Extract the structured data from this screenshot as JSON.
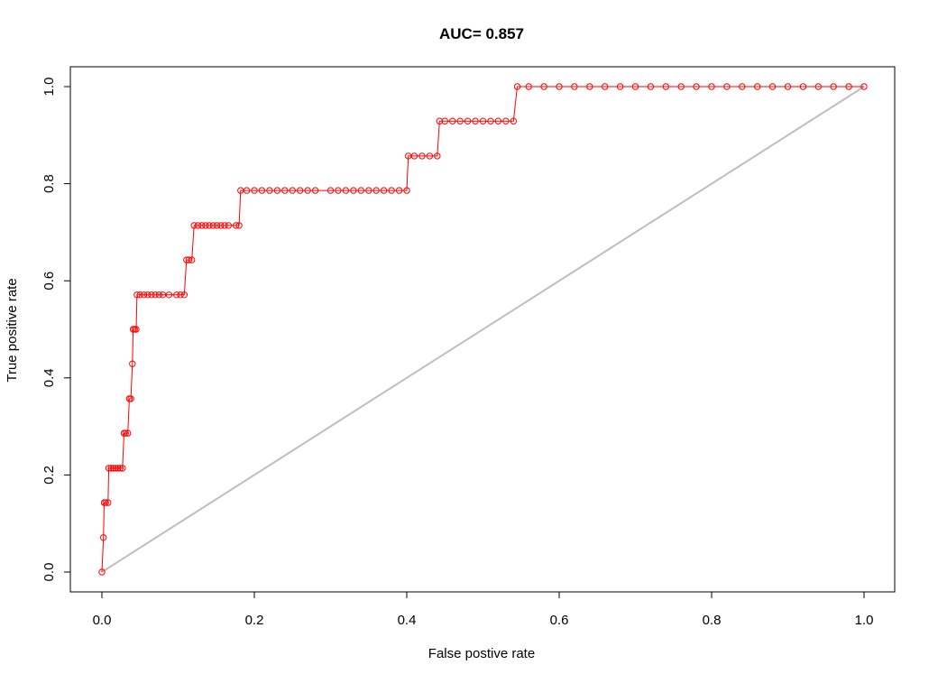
{
  "chart_data": {
    "type": "line",
    "title": "AUC= 0.857",
    "xlabel": "False postive rate",
    "ylabel": "True positive rate",
    "xlim": [
      0,
      1
    ],
    "ylim": [
      0,
      1
    ],
    "x_ticks": [
      "0.0",
      "0.2",
      "0.4",
      "0.6",
      "0.8",
      "1.0"
    ],
    "y_ticks": [
      "0.0",
      "0.2",
      "0.4",
      "0.6",
      "0.8",
      "1.0"
    ],
    "grid": false,
    "legend": "none",
    "series": [
      {
        "color": "#ff0000",
        "marker": "open-circle",
        "points": [
          [
            0.0,
            0.0
          ],
          [
            0.002,
            0.071
          ],
          [
            0.003,
            0.143
          ],
          [
            0.005,
            0.143
          ],
          [
            0.008,
            0.143
          ],
          [
            0.009,
            0.214
          ],
          [
            0.012,
            0.214
          ],
          [
            0.015,
            0.214
          ],
          [
            0.018,
            0.214
          ],
          [
            0.021,
            0.214
          ],
          [
            0.024,
            0.214
          ],
          [
            0.027,
            0.214
          ],
          [
            0.029,
            0.286
          ],
          [
            0.031,
            0.286
          ],
          [
            0.034,
            0.286
          ],
          [
            0.036,
            0.357
          ],
          [
            0.038,
            0.357
          ],
          [
            0.04,
            0.429
          ],
          [
            0.041,
            0.5
          ],
          [
            0.043,
            0.5
          ],
          [
            0.045,
            0.5
          ],
          [
            0.046,
            0.571
          ],
          [
            0.05,
            0.571
          ],
          [
            0.055,
            0.571
          ],
          [
            0.06,
            0.571
          ],
          [
            0.065,
            0.571
          ],
          [
            0.07,
            0.571
          ],
          [
            0.075,
            0.571
          ],
          [
            0.08,
            0.571
          ],
          [
            0.088,
            0.571
          ],
          [
            0.098,
            0.571
          ],
          [
            0.103,
            0.571
          ],
          [
            0.108,
            0.571
          ],
          [
            0.111,
            0.643
          ],
          [
            0.114,
            0.643
          ],
          [
            0.118,
            0.643
          ],
          [
            0.121,
            0.714
          ],
          [
            0.126,
            0.714
          ],
          [
            0.131,
            0.714
          ],
          [
            0.136,
            0.714
          ],
          [
            0.141,
            0.714
          ],
          [
            0.146,
            0.714
          ],
          [
            0.151,
            0.714
          ],
          [
            0.156,
            0.714
          ],
          [
            0.161,
            0.714
          ],
          [
            0.166,
            0.714
          ],
          [
            0.176,
            0.714
          ],
          [
            0.18,
            0.714
          ],
          [
            0.182,
            0.786
          ],
          [
            0.19,
            0.786
          ],
          [
            0.2,
            0.786
          ],
          [
            0.21,
            0.786
          ],
          [
            0.22,
            0.786
          ],
          [
            0.23,
            0.786
          ],
          [
            0.24,
            0.786
          ],
          [
            0.25,
            0.786
          ],
          [
            0.26,
            0.786
          ],
          [
            0.27,
            0.786
          ],
          [
            0.28,
            0.786
          ],
          [
            0.3,
            0.786
          ],
          [
            0.31,
            0.786
          ],
          [
            0.32,
            0.786
          ],
          [
            0.33,
            0.786
          ],
          [
            0.34,
            0.786
          ],
          [
            0.35,
            0.786
          ],
          [
            0.36,
            0.786
          ],
          [
            0.37,
            0.786
          ],
          [
            0.38,
            0.786
          ],
          [
            0.39,
            0.786
          ],
          [
            0.4,
            0.786
          ],
          [
            0.402,
            0.857
          ],
          [
            0.41,
            0.857
          ],
          [
            0.42,
            0.857
          ],
          [
            0.43,
            0.857
          ],
          [
            0.44,
            0.857
          ],
          [
            0.443,
            0.929
          ],
          [
            0.45,
            0.929
          ],
          [
            0.46,
            0.929
          ],
          [
            0.47,
            0.929
          ],
          [
            0.48,
            0.929
          ],
          [
            0.49,
            0.929
          ],
          [
            0.5,
            0.929
          ],
          [
            0.51,
            0.929
          ],
          [
            0.52,
            0.929
          ],
          [
            0.53,
            0.929
          ],
          [
            0.54,
            0.929
          ],
          [
            0.545,
            1.0
          ],
          [
            0.56,
            1.0
          ],
          [
            0.58,
            1.0
          ],
          [
            0.6,
            1.0
          ],
          [
            0.62,
            1.0
          ],
          [
            0.64,
            1.0
          ],
          [
            0.66,
            1.0
          ],
          [
            0.68,
            1.0
          ],
          [
            0.7,
            1.0
          ],
          [
            0.72,
            1.0
          ],
          [
            0.74,
            1.0
          ],
          [
            0.76,
            1.0
          ],
          [
            0.78,
            1.0
          ],
          [
            0.8,
            1.0
          ],
          [
            0.82,
            1.0
          ],
          [
            0.84,
            1.0
          ],
          [
            0.86,
            1.0
          ],
          [
            0.88,
            1.0
          ],
          [
            0.9,
            1.0
          ],
          [
            0.92,
            1.0
          ],
          [
            0.94,
            1.0
          ],
          [
            0.96,
            1.0
          ],
          [
            0.98,
            1.0
          ],
          [
            1.0,
            1.0
          ]
        ]
      },
      {
        "color": "#bebebe",
        "marker": "none",
        "points": [
          [
            0,
            0
          ],
          [
            1,
            1
          ]
        ]
      }
    ]
  }
}
